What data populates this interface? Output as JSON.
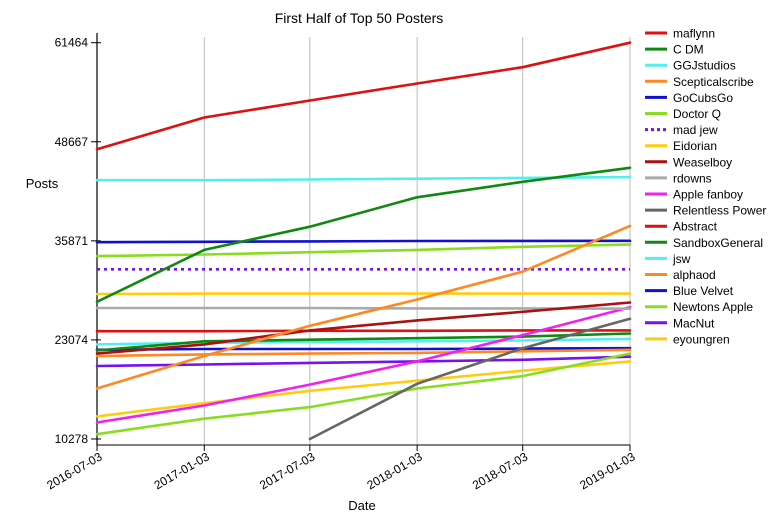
{
  "chart_data": {
    "type": "line",
    "title": "First Half of Top 50 Posters",
    "xlabel": "Date",
    "ylabel": "Posts",
    "x": [
      "2016-07-03",
      "2017-01-03",
      "2017-07-03",
      "2018-01-03",
      "2018-07-03",
      "2019-01-03"
    ],
    "xlim": [
      "2016-07-03",
      "2019-01-03"
    ],
    "yticks": [
      10278,
      23074,
      35871,
      48667,
      61464
    ],
    "ylim": [
      9500,
      62200
    ],
    "grid": "vertical lines at x ticks",
    "legend_position": "right",
    "series": [
      {
        "name": "maflynn",
        "color": "#dd1111",
        "dashed": false,
        "values": [
          47700,
          51800,
          54000,
          56200,
          58300,
          61464
        ]
      },
      {
        "name": "C DM",
        "color": "#118811",
        "dashed": false,
        "values": [
          28000,
          34700,
          37700,
          41500,
          43500,
          45300
        ]
      },
      {
        "name": "GGJstudios",
        "color": "#55eeee",
        "dashed": false,
        "values": [
          43700,
          43700,
          43800,
          43900,
          44000,
          44100
        ]
      },
      {
        "name": "Scepticalscribe",
        "color": "#ff8822",
        "dashed": false,
        "values": [
          16800,
          21000,
          24900,
          28300,
          31900,
          37800
        ]
      },
      {
        "name": "GoCubsGo",
        "color": "#1111cc",
        "dashed": false,
        "values": [
          35700,
          35750,
          35800,
          35850,
          35860,
          35871
        ]
      },
      {
        "name": "Doctor Q",
        "color": "#88dd22",
        "dashed": false,
        "values": [
          33900,
          34100,
          34400,
          34700,
          35100,
          35400
        ]
      },
      {
        "name": "mad jew",
        "color": "#7711ee",
        "dashed": true,
        "values": [
          32200,
          32200,
          32200,
          32200,
          32200,
          32200
        ]
      },
      {
        "name": "Eidorian",
        "color": "#ffcc11",
        "dashed": false,
        "values": [
          29000,
          29050,
          29050,
          29050,
          29050,
          29050
        ]
      },
      {
        "name": "Weaselboy",
        "color": "#aa1111",
        "dashed": false,
        "values": [
          21300,
          22500,
          24300,
          25600,
          26700,
          27900
        ]
      },
      {
        "name": "rdowns",
        "color": "#aaaaaa",
        "dashed": false,
        "values": [
          27200,
          27200,
          27200,
          27150,
          27150,
          27100
        ]
      },
      {
        "name": "Apple fanboy",
        "color": "#ee22ee",
        "dashed": false,
        "values": [
          12400,
          14600,
          17300,
          20300,
          23700,
          27300
        ]
      },
      {
        "name": "Relentless Power",
        "color": "#666666",
        "dashed": false,
        "values": [
          null,
          null,
          10278,
          17400,
          22000,
          25800
        ]
      },
      {
        "name": "Abstract",
        "color": "#dd1111",
        "dashed": false,
        "values": [
          24200,
          24200,
          24250,
          24250,
          24300,
          24300
        ]
      },
      {
        "name": "SandboxGeneral",
        "color": "#118811",
        "dashed": false,
        "values": [
          21700,
          22900,
          23100,
          23300,
          23500,
          23900
        ]
      },
      {
        "name": "jsw",
        "color": "#55eeee",
        "dashed": false,
        "values": [
          22500,
          22700,
          22800,
          22900,
          23000,
          23200
        ]
      },
      {
        "name": "alphaod",
        "color": "#ff8822",
        "dashed": false,
        "values": [
          21000,
          21200,
          21300,
          21400,
          21600,
          21800
        ]
      },
      {
        "name": "Blue Velvet",
        "color": "#1111cc",
        "dashed": false,
        "values": [
          21800,
          21900,
          21900,
          21900,
          21950,
          22000
        ]
      },
      {
        "name": "Newtons Apple",
        "color": "#88dd22",
        "dashed": false,
        "values": [
          10900,
          12900,
          14400,
          16800,
          18400,
          21300
        ]
      },
      {
        "name": "MacNut",
        "color": "#7711ee",
        "dashed": false,
        "values": [
          19700,
          19900,
          20100,
          20300,
          20500,
          20900
        ]
      },
      {
        "name": "eyoungren",
        "color": "#ffcc11",
        "dashed": false,
        "values": [
          13200,
          14900,
          16500,
          17800,
          19100,
          20300
        ]
      }
    ]
  }
}
